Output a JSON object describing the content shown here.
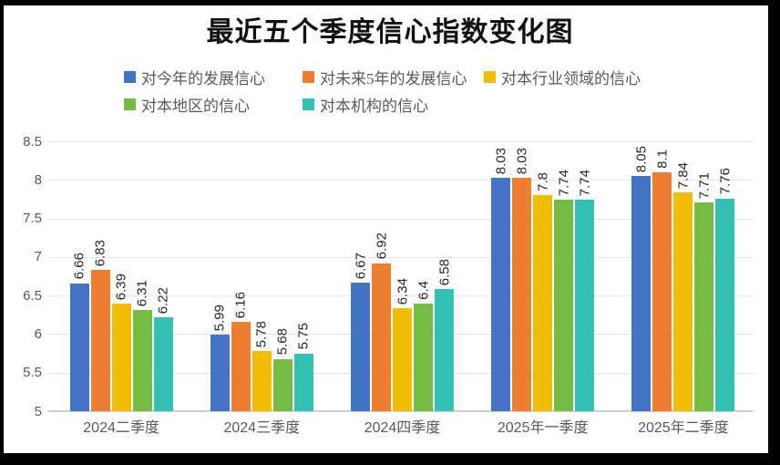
{
  "chart_data": {
    "type": "bar",
    "title": "最近五个季度信心指数变化图",
    "categories": [
      "2024二季度",
      "2024三季度",
      "2024四季度",
      "2025年一季度",
      "2025年二季度"
    ],
    "series": [
      {
        "name": "对今年的发展信心",
        "color": "#4472C4",
        "values": [
          6.66,
          5.99,
          6.67,
          8.03,
          8.05
        ]
      },
      {
        "name": "对未来5年的发展信心",
        "color": "#ED7D31",
        "values": [
          6.83,
          6.16,
          6.92,
          8.03,
          8.1
        ]
      },
      {
        "name": "对本行业领域的信心",
        "color": "#F2BD05",
        "values": [
          6.39,
          5.78,
          6.34,
          7.8,
          7.84
        ]
      },
      {
        "name": "对本地区的信心",
        "color": "#76BB44",
        "values": [
          6.31,
          5.68,
          6.4,
          7.74,
          7.71
        ]
      },
      {
        "name": "对本机构的信心",
        "color": "#33C1B5",
        "values": [
          6.22,
          5.75,
          6.58,
          7.74,
          7.76
        ]
      }
    ],
    "y_axis": {
      "min": 5,
      "max": 8.5,
      "step": 0.5,
      "tick_labels": [
        "8.5",
        "8",
        "7.5",
        "7",
        "6.5",
        "6",
        "5.5",
        "5"
      ]
    },
    "value_labels_shown": true,
    "value_label_rotation_deg": 90,
    "grid": "horizontal",
    "legend_position": "top",
    "colors": {
      "axis_text": "#595959",
      "value_label_text": "#262626",
      "gridline": "#E4E4E4",
      "frame_border": "#000000",
      "background": "#FFFFFF"
    }
  }
}
